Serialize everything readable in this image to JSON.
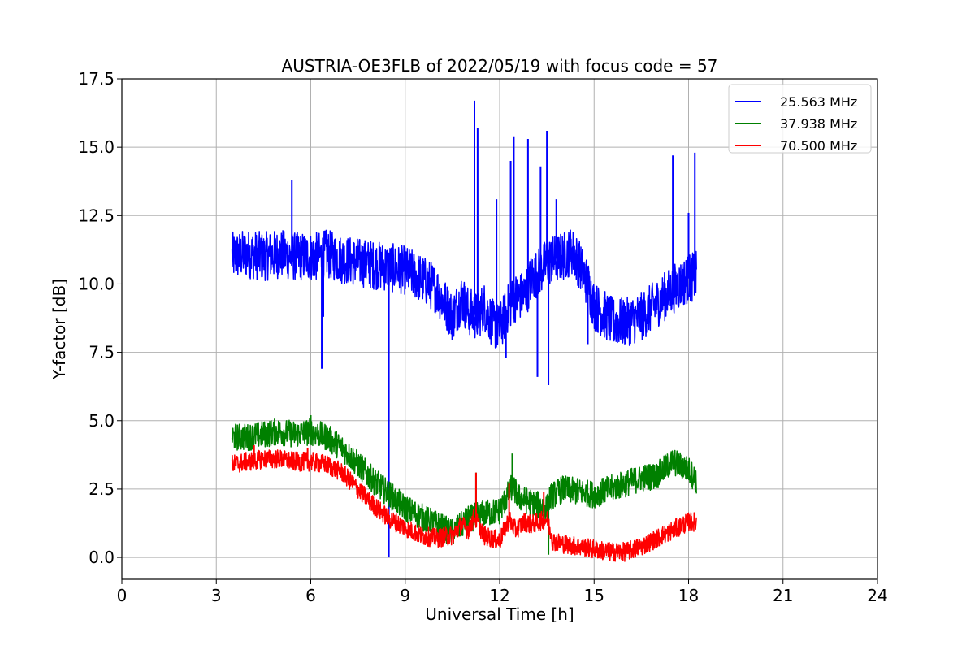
{
  "chart_data": {
    "type": "line",
    "title": "AUSTRIA-OE3FLB of 2022/05/19 with focus code = 57",
    "xlabel": "Universal Time [h]",
    "ylabel": "Y-factor [dB]",
    "xlim": [
      0,
      24
    ],
    "ylim": [
      -0.8,
      17.5
    ],
    "xticks": [
      0,
      3,
      6,
      9,
      12,
      15,
      18,
      21,
      24
    ],
    "xtick_labels": [
      "0",
      "3",
      "6",
      "9",
      "12",
      "15",
      "18",
      "21",
      "24"
    ],
    "yticks": [
      0.0,
      2.5,
      5.0,
      7.5,
      10.0,
      12.5,
      15.0,
      17.5
    ],
    "ytick_labels": [
      "0.0",
      "2.5",
      "5.0",
      "7.5",
      "10.0",
      "12.5",
      "15.0",
      "17.5"
    ],
    "grid": true,
    "legend_position": "top-right",
    "series": [
      {
        "name": "25.563 MHz",
        "color": "#0000ff",
        "noise": 0.9,
        "points": [
          [
            3.5,
            11.0
          ],
          [
            4.0,
            11.1
          ],
          [
            4.5,
            11.0
          ],
          [
            5.0,
            11.1
          ],
          [
            5.5,
            11.0
          ],
          [
            6.0,
            11.0
          ],
          [
            6.3,
            11.0
          ],
          [
            6.5,
            11.1
          ],
          [
            7.0,
            10.9
          ],
          [
            7.5,
            10.8
          ],
          [
            8.0,
            10.7
          ],
          [
            8.5,
            10.6
          ],
          [
            9.0,
            10.5
          ],
          [
            9.5,
            10.2
          ],
          [
            10.0,
            9.8
          ],
          [
            10.3,
            9.2
          ],
          [
            10.5,
            8.8
          ],
          [
            10.8,
            9.5
          ],
          [
            11.0,
            9.0
          ],
          [
            11.3,
            8.8
          ],
          [
            11.5,
            9.2
          ],
          [
            11.8,
            8.5
          ],
          [
            12.0,
            8.4
          ],
          [
            12.3,
            9.2
          ],
          [
            12.5,
            9.5
          ],
          [
            12.8,
            9.6
          ],
          [
            13.0,
            10.2
          ],
          [
            13.3,
            10.5
          ],
          [
            13.5,
            10.8
          ],
          [
            14.0,
            11.0
          ],
          [
            14.3,
            11.2
          ],
          [
            14.5,
            10.8
          ],
          [
            14.8,
            10.0
          ],
          [
            15.0,
            9.2
          ],
          [
            15.3,
            8.9
          ],
          [
            15.6,
            8.6
          ],
          [
            16.0,
            8.6
          ],
          [
            16.5,
            8.8
          ],
          [
            17.0,
            9.3
          ],
          [
            17.5,
            9.8
          ],
          [
            18.0,
            10.2
          ],
          [
            18.25,
            10.3
          ]
        ],
        "spikes": [
          [
            5.4,
            13.8
          ],
          [
            6.35,
            6.9
          ],
          [
            6.4,
            8.8
          ],
          [
            8.48,
            0.0
          ],
          [
            11.2,
            16.7
          ],
          [
            11.3,
            15.7
          ],
          [
            11.9,
            13.1
          ],
          [
            12.2,
            7.3
          ],
          [
            12.35,
            14.5
          ],
          [
            12.45,
            15.4
          ],
          [
            12.9,
            15.3
          ],
          [
            13.2,
            6.6
          ],
          [
            13.3,
            14.3
          ],
          [
            13.5,
            15.6
          ],
          [
            13.55,
            6.3
          ],
          [
            13.8,
            13.1
          ],
          [
            14.8,
            7.8
          ],
          [
            17.5,
            14.7
          ],
          [
            18.0,
            12.6
          ],
          [
            18.2,
            14.8
          ]
        ]
      },
      {
        "name": "37.938 MHz",
        "color": "#008000",
        "noise": 0.5,
        "points": [
          [
            3.5,
            4.4
          ],
          [
            4.0,
            4.4
          ],
          [
            4.5,
            4.5
          ],
          [
            5.0,
            4.6
          ],
          [
            5.5,
            4.5
          ],
          [
            6.0,
            4.6
          ],
          [
            6.5,
            4.4
          ],
          [
            7.0,
            4.0
          ],
          [
            7.5,
            3.4
          ],
          [
            8.0,
            2.8
          ],
          [
            8.5,
            2.3
          ],
          [
            9.0,
            1.8
          ],
          [
            9.5,
            1.5
          ],
          [
            10.0,
            1.2
          ],
          [
            10.5,
            0.9
          ],
          [
            11.0,
            1.4
          ],
          [
            11.5,
            1.6
          ],
          [
            12.0,
            1.7
          ],
          [
            12.4,
            2.6
          ],
          [
            12.6,
            2.2
          ],
          [
            13.0,
            2.0
          ],
          [
            13.5,
            1.8
          ],
          [
            13.6,
            2.2
          ],
          [
            14.0,
            2.5
          ],
          [
            14.5,
            2.4
          ],
          [
            15.0,
            2.3
          ],
          [
            15.5,
            2.5
          ],
          [
            16.0,
            2.7
          ],
          [
            16.5,
            2.9
          ],
          [
            17.0,
            3.0
          ],
          [
            17.5,
            3.5
          ],
          [
            18.0,
            3.2
          ],
          [
            18.25,
            2.8
          ]
        ],
        "spikes": [
          [
            6.0,
            5.2
          ],
          [
            11.25,
            3.1
          ],
          [
            12.4,
            3.8
          ],
          [
            13.55,
            0.1
          ]
        ]
      },
      {
        "name": "70.500 MHz",
        "color": "#ff0000",
        "noise": 0.35,
        "points": [
          [
            3.5,
            3.4
          ],
          [
            4.0,
            3.5
          ],
          [
            4.5,
            3.6
          ],
          [
            5.0,
            3.6
          ],
          [
            5.5,
            3.5
          ],
          [
            6.0,
            3.5
          ],
          [
            6.5,
            3.4
          ],
          [
            7.0,
            3.1
          ],
          [
            7.5,
            2.5
          ],
          [
            8.0,
            1.9
          ],
          [
            8.5,
            1.4
          ],
          [
            9.0,
            1.1
          ],
          [
            9.5,
            0.8
          ],
          [
            10.0,
            0.7
          ],
          [
            10.5,
            0.8
          ],
          [
            10.8,
            1.2
          ],
          [
            11.0,
            1.0
          ],
          [
            11.2,
            1.5
          ],
          [
            11.5,
            0.8
          ],
          [
            12.0,
            0.6
          ],
          [
            12.3,
            1.4
          ],
          [
            12.5,
            1.0
          ],
          [
            12.8,
            1.3
          ],
          [
            13.0,
            1.2
          ],
          [
            13.5,
            1.4
          ],
          [
            13.7,
            0.6
          ],
          [
            14.0,
            0.5
          ],
          [
            14.5,
            0.4
          ],
          [
            15.0,
            0.3
          ],
          [
            15.5,
            0.2
          ],
          [
            16.0,
            0.2
          ],
          [
            16.5,
            0.4
          ],
          [
            17.0,
            0.7
          ],
          [
            17.5,
            1.0
          ],
          [
            18.0,
            1.3
          ],
          [
            18.25,
            1.3
          ]
        ],
        "spikes": [
          [
            4.2,
            4.1
          ],
          [
            5.9,
            4.0
          ],
          [
            11.25,
            3.1
          ],
          [
            12.3,
            2.7
          ],
          [
            13.4,
            2.4
          ]
        ]
      }
    ]
  }
}
